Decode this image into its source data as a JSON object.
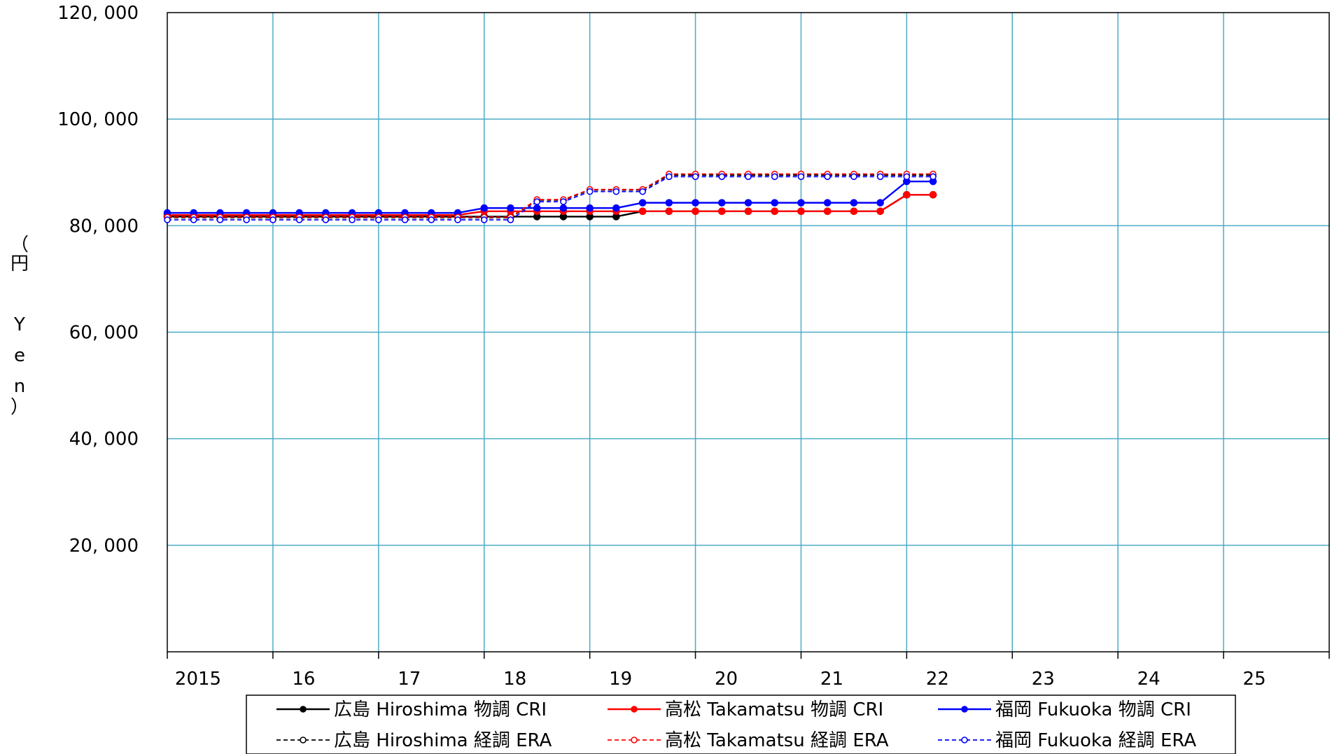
{
  "chart_data": {
    "type": "line",
    "title": "",
    "xlabel": "",
    "ylabel_chars": [
      "（",
      "円",
      "",
      "Y",
      "e",
      "n",
      "）"
    ],
    "x_tick_labels": [
      "2015",
      "16",
      "17",
      "18",
      "19",
      "20",
      "21",
      "22",
      "23",
      "24",
      "25"
    ],
    "y_tick_labels": [
      "",
      "20, 000",
      "40, 000",
      "60, 000",
      "80, 000",
      "100, 000",
      "120, 000"
    ],
    "xlim": [
      2015,
      2026
    ],
    "ylim": [
      0,
      120000
    ],
    "grid": true,
    "legend_placement": "bottom",
    "x": [
      2015.0,
      2015.25,
      2015.5,
      2015.75,
      2016.0,
      2016.25,
      2016.5,
      2016.75,
      2017.0,
      2017.25,
      2017.5,
      2017.75,
      2018.0,
      2018.25,
      2018.5,
      2018.75,
      2019.0,
      2019.25,
      2019.5,
      2019.75,
      2020.0,
      2020.25,
      2020.5,
      2020.75,
      2021.0,
      2021.25,
      2021.5,
      2021.75,
      2022.0,
      2022.25
    ],
    "series": [
      {
        "name": "広島 Hiroshima 物調 CRI",
        "color": "#000000",
        "dashed": false,
        "hollow": false,
        "values": [
          81700,
          81700,
          81700,
          81700,
          81700,
          81700,
          81700,
          81700,
          81700,
          81700,
          81700,
          81700,
          81700,
          81700,
          81700,
          81700,
          81700,
          81700,
          82700,
          82700,
          82700,
          82700,
          82700,
          82700,
          82700,
          82700,
          82700,
          82700,
          85800,
          85800
        ]
      },
      {
        "name": "高松 Takamatsu 物調 CRI",
        "color": "#ff0000",
        "dashed": false,
        "hollow": false,
        "values": [
          82000,
          82000,
          82000,
          82000,
          82000,
          82000,
          82000,
          82000,
          82000,
          82000,
          82000,
          82000,
          82700,
          82700,
          82700,
          82700,
          82700,
          82700,
          82700,
          82700,
          82700,
          82700,
          82700,
          82700,
          82700,
          82700,
          82700,
          82700,
          85800,
          85800
        ]
      },
      {
        "name": "福岡 Fukuoka  物調 CRI",
        "color": "#0000ff",
        "dashed": false,
        "hollow": false,
        "values": [
          82400,
          82400,
          82400,
          82400,
          82400,
          82400,
          82400,
          82400,
          82400,
          82400,
          82400,
          82400,
          83300,
          83300,
          83300,
          83300,
          83300,
          83300,
          84300,
          84300,
          84300,
          84300,
          84300,
          84300,
          84300,
          84300,
          84300,
          84300,
          88300,
          88300
        ]
      },
      {
        "name": "広島 Hiroshima 経調 ERA",
        "color": "#000000",
        "dashed": true,
        "hollow": true,
        "values": [
          81500,
          81500,
          81500,
          81500,
          81500,
          81500,
          81500,
          81500,
          81500,
          81500,
          81500,
          81500,
          81500,
          81500,
          84800,
          84800,
          86700,
          86700,
          86700,
          89500,
          89500,
          89500,
          89500,
          89500,
          89500,
          89500,
          89500,
          89500,
          89500,
          89500
        ]
      },
      {
        "name": "高松 Takamatsu 経調 ERA",
        "color": "#ff0000",
        "dashed": true,
        "hollow": true,
        "values": [
          81600,
          81600,
          81600,
          81600,
          81600,
          81600,
          81600,
          81600,
          81600,
          81600,
          81600,
          81600,
          81600,
          81600,
          84900,
          84900,
          86800,
          86800,
          86800,
          89700,
          89700,
          89700,
          89700,
          89700,
          89700,
          89700,
          89700,
          89700,
          89700,
          89700
        ]
      },
      {
        "name": "福岡 Fukuoka  経調 ERA",
        "color": "#0000ff",
        "dashed": true,
        "hollow": true,
        "values": [
          81100,
          81100,
          81100,
          81100,
          81100,
          81100,
          81100,
          81100,
          81100,
          81100,
          81100,
          81100,
          81100,
          81100,
          84500,
          84500,
          86400,
          86400,
          86400,
          89200,
          89200,
          89200,
          89200,
          89200,
          89200,
          89200,
          89200,
          89200,
          89200,
          89200
        ]
      }
    ]
  }
}
